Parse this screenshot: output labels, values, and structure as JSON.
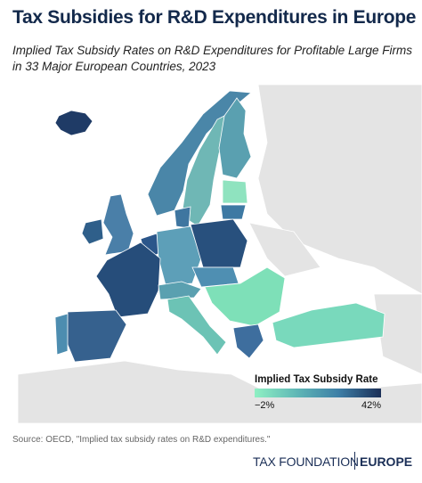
{
  "header": {
    "title": "Tax Subsidies for R&D Expenditures in Europe",
    "subtitle": [
      "Implied Tax Subsidy Rates on R&D Expenditures for Profitable Large Firms",
      "in 33 Major European Countries, 2023"
    ]
  },
  "legend": {
    "title": "Implied Tax Subsidy Rate",
    "min_label": "−2%",
    "max_label": "42%"
  },
  "source": "Source: OECD, \"Implied tax subsidy rates on R&D expenditures.\"",
  "footer": {
    "brand": "TAX FOUNDATION",
    "region": "EUROPE"
  }
}
